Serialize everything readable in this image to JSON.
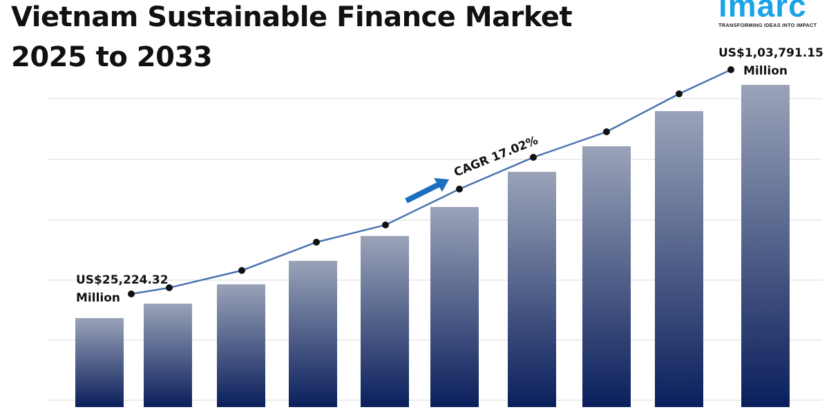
{
  "title_line1": "Vietnam Sustainable Finance Market",
  "title_line2": "2025 to 2033",
  "logo": {
    "word": "imarc",
    "tagline": "TRANSFORMING IDEAS INTO IMPACT"
  },
  "chart_data": {
    "type": "bar",
    "title": "Vietnam Sustainable Finance Market 2025 to 2033",
    "values": [
      25224.32,
      30105,
      36613,
      44515,
      52882,
      62644,
      74497,
      83097,
      94949,
      103791.15
    ],
    "unit": "US$ Million",
    "line_overlay": true,
    "grid": true,
    "annotations": {
      "start_value": "US$25,224.32",
      "start_unit": "Million",
      "end_value": "US$1,03,791.15",
      "end_unit": "Million",
      "cagr": "CAGR 17.02%"
    },
    "colors": {
      "bar_top": "#9aa3b8",
      "bar_bottom": "#0a1f5c",
      "line": "#4a72b0",
      "arrow": "#1b6fc0"
    }
  }
}
